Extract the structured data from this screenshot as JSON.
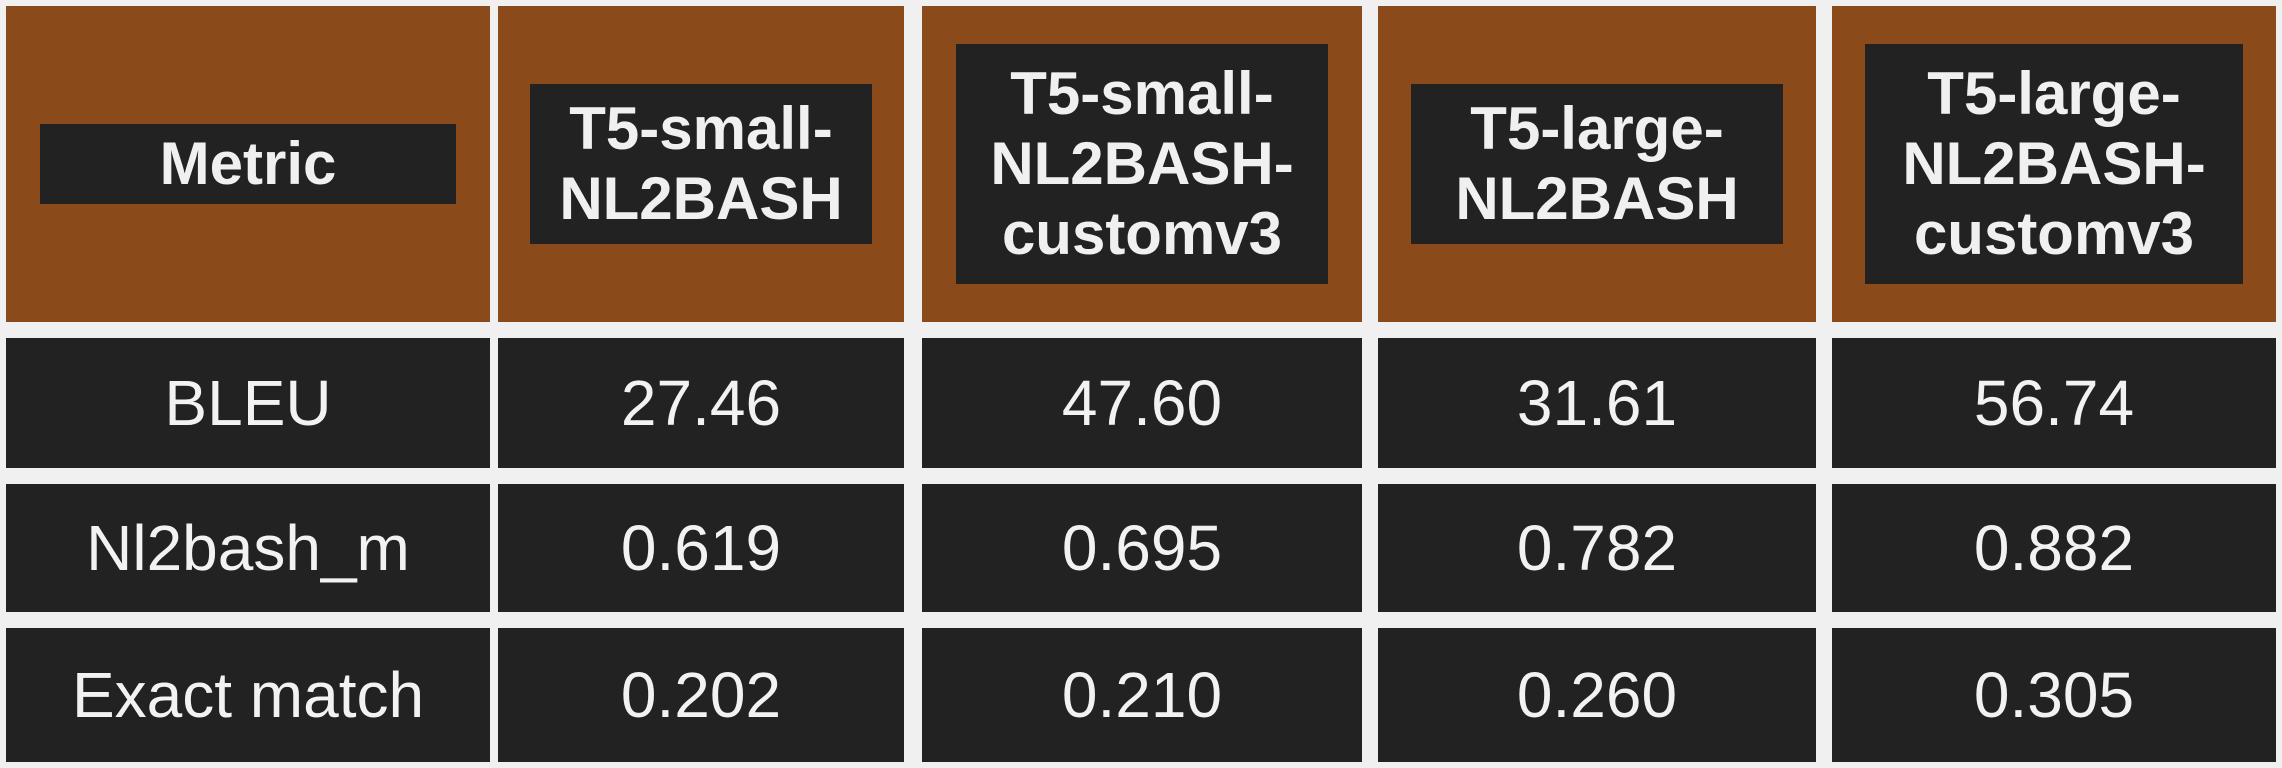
{
  "chart_data": {
    "type": "table",
    "columns": [
      "Metric",
      "T5-small-NL2BASH",
      "T5-small-NL2BASH-customv3",
      "T5-large-NL2BASH",
      "T5-large-NL2BASH-customv3"
    ],
    "column_lines": [
      [
        "Metric"
      ],
      [
        "T5-small-",
        "NL2BASH"
      ],
      [
        "T5-small-",
        "NL2BASH-",
        "customv3"
      ],
      [
        "T5-large-",
        "NL2BASH"
      ],
      [
        "T5-large-",
        "NL2BASH-",
        "customv3"
      ]
    ],
    "rows": [
      [
        "BLEU",
        "27.46",
        "47.60",
        "31.61",
        "56.74"
      ],
      [
        "Nl2bash_m",
        "0.619",
        "0.695",
        "0.782",
        "0.882"
      ],
      [
        "Exact match",
        "0.202",
        "0.210",
        "0.260",
        "0.305"
      ]
    ]
  },
  "colors": {
    "header_background": "#8b4a1a",
    "cell_background": "#222222",
    "text": "#f2f2f2",
    "grid_gap": "#f0f0f0"
  }
}
